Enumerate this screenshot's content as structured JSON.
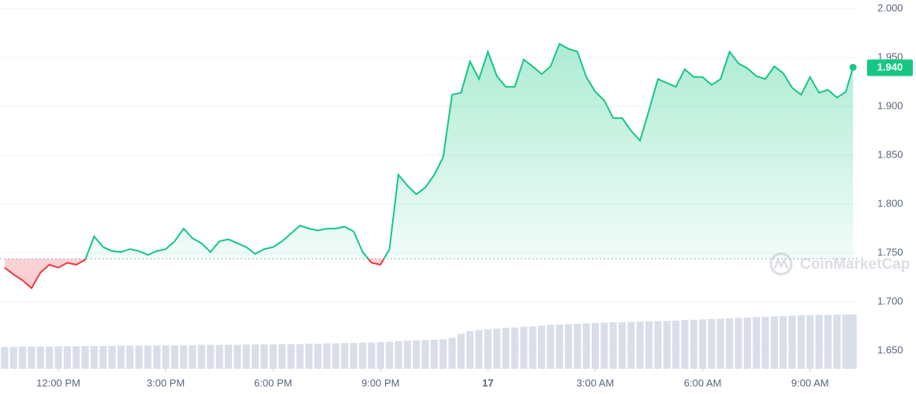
{
  "chart_data": {
    "type": "line",
    "x": [
      10.5,
      10.75,
      11,
      11.25,
      11.5,
      11.75,
      12,
      12.25,
      12.5,
      12.75,
      13,
      13.25,
      13.5,
      13.75,
      14,
      14.25,
      14.5,
      14.75,
      15,
      15.25,
      15.5,
      15.75,
      16,
      16.25,
      16.5,
      16.75,
      17,
      17.25,
      17.5,
      17.75,
      18,
      18.25,
      18.5,
      18.75,
      19,
      19.25,
      19.5,
      19.75,
      20,
      20.25,
      20.5,
      20.75,
      21,
      21.25,
      21.5,
      21.75,
      22,
      22.25,
      22.5,
      22.75,
      23,
      23.25,
      23.5,
      23.75,
      24,
      24.25,
      24.5,
      24.75,
      25,
      25.25,
      25.5,
      25.75,
      26,
      26.25,
      26.5,
      26.75,
      27,
      27.25,
      27.5,
      27.75,
      28,
      28.25,
      28.5,
      28.75,
      29,
      29.25,
      29.5,
      29.75,
      30,
      30.25,
      30.5,
      30.75,
      31,
      31.25,
      31.5,
      31.75,
      32,
      32.25,
      32.5,
      32.75,
      33,
      33.25,
      33.5,
      33.75,
      34,
      34.2
    ],
    "values": [
      1.735,
      1.728,
      1.722,
      1.714,
      1.73,
      1.738,
      1.735,
      1.74,
      1.738,
      1.743,
      1.767,
      1.756,
      1.752,
      1.751,
      1.754,
      1.752,
      1.748,
      1.752,
      1.754,
      1.762,
      1.775,
      1.765,
      1.76,
      1.751,
      1.762,
      1.764,
      1.76,
      1.756,
      1.749,
      1.754,
      1.756,
      1.762,
      1.77,
      1.778,
      1.775,
      1.773,
      1.775,
      1.775,
      1.777,
      1.772,
      1.751,
      1.74,
      1.738,
      1.754,
      1.83,
      1.819,
      1.81,
      1.817,
      1.83,
      1.848,
      1.912,
      1.914,
      1.946,
      1.928,
      1.956,
      1.931,
      1.92,
      1.92,
      1.948,
      1.941,
      1.933,
      1.941,
      1.964,
      1.959,
      1.956,
      1.93,
      1.915,
      1.906,
      1.888,
      1.888,
      1.875,
      1.865,
      1.896,
      1.928,
      1.924,
      1.92,
      1.938,
      1.93,
      1.93,
      1.922,
      1.928,
      1.956,
      1.944,
      1.939,
      1.931,
      1.928,
      1.941,
      1.934,
      1.919,
      1.912,
      1.93,
      1.914,
      1.917,
      1.909,
      1.915,
      1.94
    ],
    "volume": [
      5.9,
      5.9,
      6.0,
      6.0,
      6.0,
      6.0,
      6.1,
      6.1,
      6.1,
      6.2,
      6.2,
      6.2,
      6.2,
      6.3,
      6.3,
      6.3,
      6.3,
      6.3,
      6.4,
      6.4,
      6.4,
      6.4,
      6.5,
      6.5,
      6.5,
      6.5,
      6.5,
      6.6,
      6.6,
      6.6,
      6.6,
      6.7,
      6.7,
      6.7,
      6.8,
      6.8,
      6.9,
      6.9,
      7.0,
      7.0,
      7.1,
      7.1,
      7.2,
      7.3,
      7.5,
      7.6,
      7.7,
      7.8,
      7.9,
      8.0,
      8.4,
      9.5,
      10.2,
      10.5,
      10.7,
      10.9,
      11.1,
      11.2,
      11.4,
      11.5,
      11.7,
      11.9,
      12.0,
      12.1,
      12.2,
      12.3,
      12.4,
      12.5,
      12.6,
      12.6,
      12.7,
      12.8,
      12.9,
      12.9,
      13.0,
      13.1,
      13.2,
      13.3,
      13.4,
      13.5,
      13.6,
      13.7,
      13.8,
      13.9,
      14.0,
      14.1,
      14.2,
      14.3,
      14.4,
      14.5,
      14.5,
      14.6,
      14.6,
      14.7,
      14.7,
      14.8
    ],
    "y2lim": [
      0,
      100
    ],
    "baseline": 1.744,
    "current_price_label": "1.940",
    "up_color": "#16c784",
    "down_color": "#ea3943",
    "volume_color": "#cfd6e4",
    "xlim": [
      10.37,
      34.35
    ],
    "xticks": [
      {
        "value": 12,
        "label": "12:00 PM"
      },
      {
        "value": 15,
        "label": "3:00 PM"
      },
      {
        "value": 18,
        "label": "6:00 PM"
      },
      {
        "value": 21,
        "label": "9:00 PM"
      },
      {
        "value": 24,
        "label": "17"
      },
      {
        "value": 27,
        "label": "3:00 AM"
      },
      {
        "value": 30,
        "label": "6:00 AM"
      },
      {
        "value": 33,
        "label": "9:00 AM"
      }
    ],
    "ylim": [
      1.6315,
      2.0089
    ],
    "yticks": [
      {
        "value": 1.65,
        "label": "1.650"
      },
      {
        "value": 1.7,
        "label": "1.700"
      },
      {
        "value": 1.75,
        "label": "1.750"
      },
      {
        "value": 1.8,
        "label": "1.800"
      },
      {
        "value": 1.85,
        "label": "1.850"
      },
      {
        "value": 1.9,
        "label": "1.900"
      },
      {
        "value": 1.95,
        "label": "1.950"
      },
      {
        "value": 2.0,
        "label": "2.000"
      }
    ],
    "grid": true,
    "watermark": "CoinMarketCap"
  }
}
